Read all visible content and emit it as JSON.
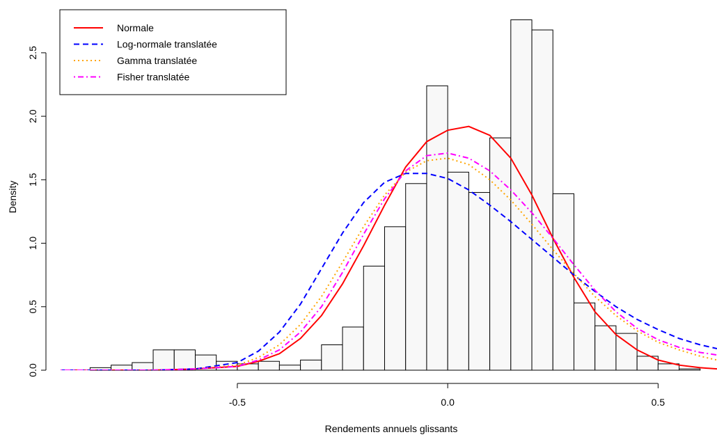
{
  "chart_data": {
    "type": "histogram",
    "title": "",
    "xlabel": "Rendements annuels glissants",
    "ylabel": "Density",
    "xlim": [
      -0.935,
      0.64
    ],
    "ylim": [
      0,
      2.85
    ],
    "x_ticks": [
      {
        "value": -0.5,
        "label": "-0.5"
      },
      {
        "value": 0.0,
        "label": "0.0"
      },
      {
        "value": 0.5,
        "label": "0.5"
      }
    ],
    "y_ticks": [
      {
        "value": 0.0,
        "label": "0.0"
      },
      {
        "value": 0.5,
        "label": "0.5"
      },
      {
        "value": 1.0,
        "label": "1.0"
      },
      {
        "value": 1.5,
        "label": "1.5"
      },
      {
        "value": 2.0,
        "label": "2.0"
      },
      {
        "value": 2.5,
        "label": "2.5"
      }
    ],
    "bin_width": 0.05,
    "bins": [
      {
        "x0": -0.9,
        "x1": -0.85,
        "density": 0.0
      },
      {
        "x0": -0.85,
        "x1": -0.8,
        "density": 0.02
      },
      {
        "x0": -0.8,
        "x1": -0.75,
        "density": 0.04
      },
      {
        "x0": -0.75,
        "x1": -0.7,
        "density": 0.06
      },
      {
        "x0": -0.7,
        "x1": -0.65,
        "density": 0.16
      },
      {
        "x0": -0.65,
        "x1": -0.6,
        "density": 0.16
      },
      {
        "x0": -0.6,
        "x1": -0.55,
        "density": 0.12
      },
      {
        "x0": -0.55,
        "x1": -0.5,
        "density": 0.07
      },
      {
        "x0": -0.5,
        "x1": -0.45,
        "density": 0.05
      },
      {
        "x0": -0.45,
        "x1": -0.4,
        "density": 0.07
      },
      {
        "x0": -0.4,
        "x1": -0.35,
        "density": 0.04
      },
      {
        "x0": -0.35,
        "x1": -0.3,
        "density": 0.08
      },
      {
        "x0": -0.3,
        "x1": -0.25,
        "density": 0.2
      },
      {
        "x0": -0.25,
        "x1": -0.2,
        "density": 0.34
      },
      {
        "x0": -0.2,
        "x1": -0.15,
        "density": 0.82
      },
      {
        "x0": -0.15,
        "x1": -0.1,
        "density": 1.13
      },
      {
        "x0": -0.1,
        "x1": -0.05,
        "density": 1.47
      },
      {
        "x0": -0.05,
        "x1": 0.0,
        "density": 2.24
      },
      {
        "x0": 0.0,
        "x1": 0.05,
        "density": 1.56
      },
      {
        "x0": 0.05,
        "x1": 0.1,
        "density": 1.4
      },
      {
        "x0": 0.1,
        "x1": 0.15,
        "density": 1.83
      },
      {
        "x0": 0.15,
        "x1": 0.2,
        "density": 2.76
      },
      {
        "x0": 0.2,
        "x1": 0.25,
        "density": 2.68
      },
      {
        "x0": 0.25,
        "x1": 0.3,
        "density": 1.39
      },
      {
        "x0": 0.3,
        "x1": 0.35,
        "density": 0.53
      },
      {
        "x0": 0.35,
        "x1": 0.4,
        "density": 0.35
      },
      {
        "x0": 0.4,
        "x1": 0.45,
        "density": 0.29
      },
      {
        "x0": 0.45,
        "x1": 0.5,
        "density": 0.11
      },
      {
        "x0": 0.5,
        "x1": 0.55,
        "density": 0.05
      },
      {
        "x0": 0.55,
        "x1": 0.6,
        "density": 0.01
      }
    ],
    "series": [
      {
        "name": "Normale",
        "color": "#ff0000",
        "dash": "solid",
        "x": [
          -0.92,
          -0.8,
          -0.7,
          -0.6,
          -0.5,
          -0.45,
          -0.4,
          -0.35,
          -0.3,
          -0.25,
          -0.2,
          -0.15,
          -0.1,
          -0.05,
          0.0,
          0.05,
          0.1,
          0.15,
          0.2,
          0.25,
          0.3,
          0.35,
          0.4,
          0.45,
          0.5,
          0.55,
          0.6,
          0.64
        ],
        "y": [
          0.0,
          0.0,
          0.0,
          0.01,
          0.03,
          0.07,
          0.13,
          0.25,
          0.43,
          0.68,
          0.98,
          1.3,
          1.6,
          1.8,
          1.89,
          1.92,
          1.85,
          1.67,
          1.38,
          1.04,
          0.73,
          0.46,
          0.28,
          0.16,
          0.08,
          0.04,
          0.02,
          0.01
        ]
      },
      {
        "name": "Log-normale translatée",
        "color": "#0000ff",
        "dash": "dashed",
        "x": [
          -0.92,
          -0.7,
          -0.6,
          -0.5,
          -0.45,
          -0.4,
          -0.35,
          -0.3,
          -0.25,
          -0.2,
          -0.15,
          -0.1,
          -0.05,
          0.0,
          0.05,
          0.1,
          0.15,
          0.2,
          0.25,
          0.3,
          0.35,
          0.4,
          0.45,
          0.5,
          0.55,
          0.6,
          0.64
        ],
        "y": [
          0.0,
          0.0,
          0.01,
          0.06,
          0.15,
          0.3,
          0.52,
          0.8,
          1.08,
          1.32,
          1.48,
          1.55,
          1.55,
          1.51,
          1.42,
          1.3,
          1.17,
          1.03,
          0.89,
          0.75,
          0.62,
          0.5,
          0.4,
          0.32,
          0.25,
          0.2,
          0.17
        ]
      },
      {
        "name": "Gamma translatée",
        "color": "#ffa500",
        "dash": "dotted",
        "x": [
          -0.92,
          -0.7,
          -0.6,
          -0.5,
          -0.45,
          -0.4,
          -0.35,
          -0.3,
          -0.25,
          -0.2,
          -0.15,
          -0.1,
          -0.05,
          0.0,
          0.05,
          0.1,
          0.15,
          0.2,
          0.25,
          0.3,
          0.35,
          0.4,
          0.45,
          0.5,
          0.55,
          0.6,
          0.64
        ],
        "y": [
          0.0,
          0.0,
          0.01,
          0.04,
          0.1,
          0.2,
          0.36,
          0.58,
          0.85,
          1.13,
          1.38,
          1.56,
          1.65,
          1.67,
          1.62,
          1.5,
          1.34,
          1.15,
          0.95,
          0.76,
          0.58,
          0.43,
          0.31,
          0.22,
          0.16,
          0.11,
          0.08
        ]
      },
      {
        "name": "Fisher translatée",
        "color": "#ff00ff",
        "dash": "dotdash",
        "x": [
          -0.92,
          -0.7,
          -0.6,
          -0.5,
          -0.45,
          -0.4,
          -0.35,
          -0.3,
          -0.25,
          -0.2,
          -0.15,
          -0.1,
          -0.05,
          0.0,
          0.05,
          0.1,
          0.15,
          0.2,
          0.25,
          0.3,
          0.35,
          0.4,
          0.45,
          0.5,
          0.55,
          0.6,
          0.64
        ],
        "y": [
          0.0,
          0.0,
          0.01,
          0.03,
          0.08,
          0.16,
          0.3,
          0.5,
          0.77,
          1.07,
          1.35,
          1.57,
          1.69,
          1.71,
          1.67,
          1.57,
          1.42,
          1.24,
          1.04,
          0.83,
          0.63,
          0.46,
          0.33,
          0.24,
          0.18,
          0.14,
          0.12
        ]
      }
    ],
    "legend": {
      "position": "top-left",
      "boxed": true
    },
    "grid": false
  }
}
